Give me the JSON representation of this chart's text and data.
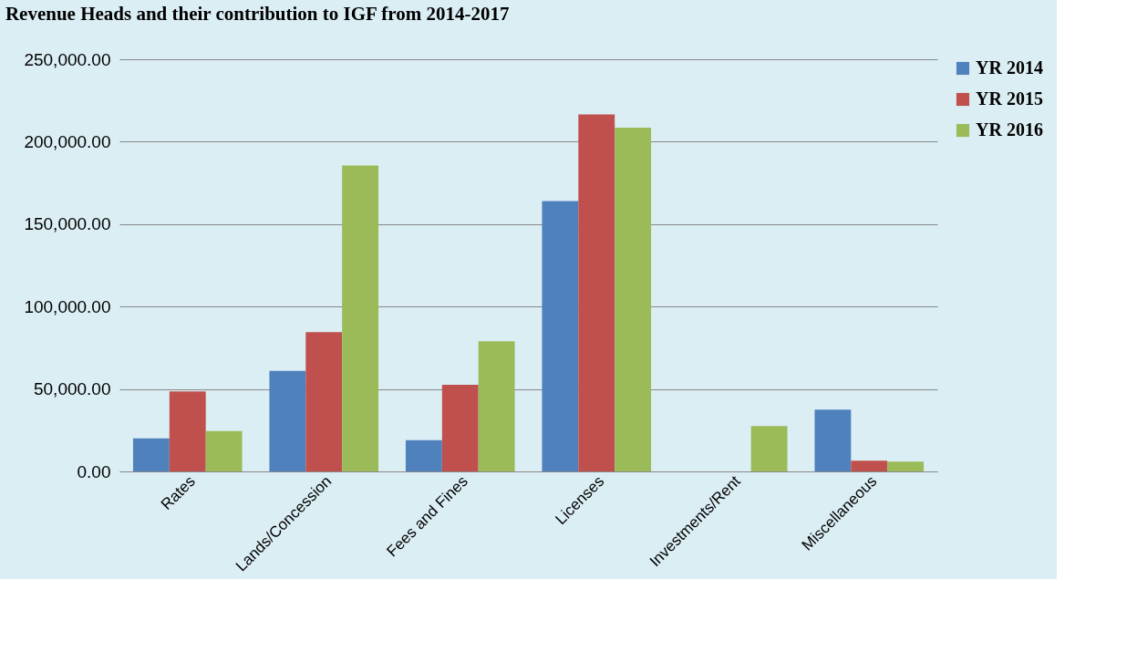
{
  "chart_data": {
    "type": "bar",
    "title": "Revenue Heads and their contribution to IGF from 2014-2017",
    "categories": [
      "Rates",
      "Lands/Concession",
      "Fees and Fines",
      "Licenses",
      "Investments/Rent",
      "Miscellaneous"
    ],
    "series": [
      {
        "name": "YR   2014",
        "color": "#4f81bd",
        "values": [
          20000,
          61000,
          19000,
          164000,
          null,
          37500
        ]
      },
      {
        "name": "YR   2015",
        "color": "#c0504d",
        "values": [
          48500,
          84500,
          52500,
          216500,
          null,
          6500
        ]
      },
      {
        "name": "YR   2016",
        "color": "#9bbb59",
        "values": [
          24500,
          185500,
          79000,
          208500,
          27500,
          6000
        ]
      }
    ],
    "ylim": [
      0,
      250000
    ],
    "yticks": [
      {
        "value": 0,
        "label": "0.00"
      },
      {
        "value": 50000,
        "label": "50,000.00"
      },
      {
        "value": 100000,
        "label": "100,000.00"
      },
      {
        "value": 150000,
        "label": "150,000.00"
      },
      {
        "value": 200000,
        "label": "200,000.00"
      },
      {
        "value": 250000,
        "label": "250,000.00"
      }
    ],
    "grid": "y",
    "legend": "right"
  }
}
